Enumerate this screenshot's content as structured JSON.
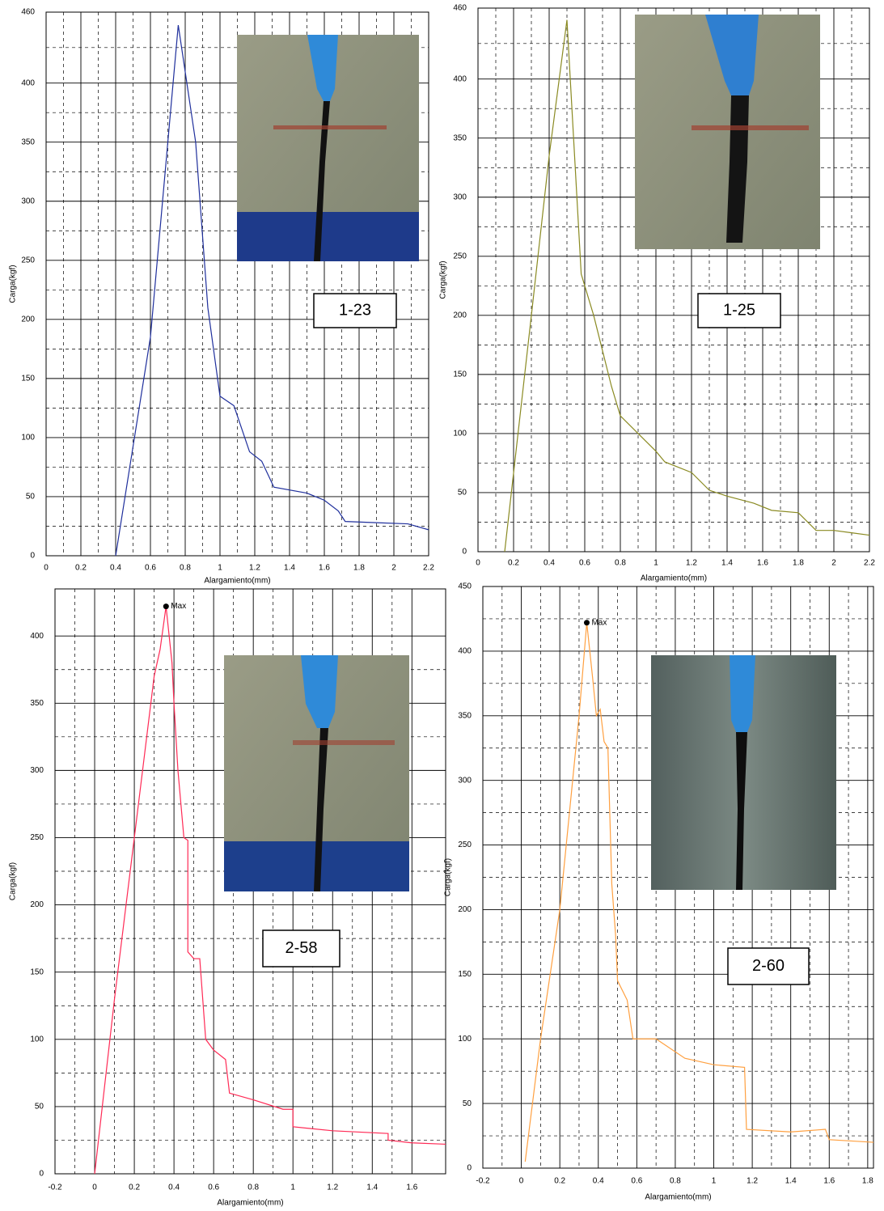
{
  "chart_data": [
    {
      "type": "line",
      "annotation": "1-23",
      "ylabel": "Carga(kgf)",
      "xlabel": "Alargamiento(mm)",
      "color": "#1f2f9c",
      "xlim": [
        0,
        2.2
      ],
      "ylim": [
        0,
        460
      ],
      "xticks": [
        0,
        0.2,
        0.4,
        0.6,
        0.8,
        1,
        1.2,
        1.4,
        1.6,
        1.8,
        2,
        2.2
      ],
      "yticks": [
        0,
        50,
        100,
        150,
        200,
        250,
        300,
        350,
        400,
        460
      ],
      "grid": true,
      "x": [
        0.4,
        0.6,
        0.76,
        0.86,
        0.93,
        1.0,
        1.08,
        1.17,
        1.24,
        1.31,
        1.5,
        1.6,
        1.68,
        1.72,
        1.9,
        2.08,
        2.2
      ],
      "values": [
        0,
        185,
        449,
        350,
        210,
        135,
        127,
        88,
        80,
        58,
        53,
        47,
        38,
        29,
        28,
        27,
        22
      ]
    },
    {
      "type": "line",
      "annotation": "1-25",
      "ylabel": "Carga(kgf)",
      "xlabel": "Alargamiento(mm)",
      "color": "#8a8a22",
      "xlim": [
        0,
        2.2
      ],
      "ylim": [
        0,
        460
      ],
      "xticks": [
        0,
        0.2,
        0.4,
        0.6,
        0.8,
        1,
        1.2,
        1.4,
        1.6,
        1.8,
        2,
        2.2
      ],
      "yticks": [
        0,
        50,
        100,
        150,
        200,
        250,
        300,
        350,
        400,
        460
      ],
      "grid": true,
      "x": [
        0.15,
        0.3,
        0.4,
        0.5,
        0.58,
        0.65,
        0.75,
        0.8,
        0.9,
        1.0,
        1.05,
        1.2,
        1.3,
        1.4,
        1.55,
        1.65,
        1.8,
        1.9,
        2.0,
        2.1,
        2.2
      ],
      "values": [
        0,
        200,
        335,
        450,
        235,
        200,
        140,
        115,
        100,
        85,
        76,
        67,
        52,
        47,
        41,
        35,
        33,
        18,
        18,
        16,
        14
      ]
    },
    {
      "type": "line",
      "annotation": "2-58",
      "ylabel": "Carga(kgf)",
      "xlabel": "Alargamiento(mm)",
      "color": "#ff2a55",
      "xlim": [
        -0.2,
        1.77
      ],
      "ylim": [
        0,
        435
      ],
      "xticks": [
        -0.2,
        0,
        0.2,
        0.4,
        0.6,
        0.8,
        1,
        1.2,
        1.4,
        1.6
      ],
      "yticks": [
        0,
        50,
        100,
        150,
        200,
        250,
        300,
        350,
        400
      ],
      "grid": true,
      "x": [
        0,
        0.1,
        0.2,
        0.3,
        0.33,
        0.36,
        0.39,
        0.4,
        0.42,
        0.45,
        0.47,
        0.47,
        0.5,
        0.53,
        0.56,
        0.6,
        0.66,
        0.68,
        0.8,
        0.95,
        1.0,
        1.0,
        1.2,
        1.48,
        1.48,
        1.6,
        1.77
      ],
      "values": [
        0,
        130,
        250,
        370,
        390,
        422,
        380,
        350,
        300,
        250,
        248,
        165,
        160,
        160,
        100,
        92,
        85,
        60,
        55,
        48,
        48,
        35,
        32,
        30,
        25,
        23,
        22
      ],
      "marker": {
        "x": 0.36,
        "y": 422,
        "label": "Max"
      }
    },
    {
      "type": "line",
      "annotation": "2-60",
      "ylabel": "Carga(kgf)",
      "xlabel": "Alargamiento(mm)",
      "color": "#ffa040",
      "xlim": [
        -0.2,
        1.83
      ],
      "ylim": [
        0,
        450
      ],
      "xticks": [
        -0.2,
        0,
        0.2,
        0.4,
        0.6,
        0.8,
        1,
        1.2,
        1.4,
        1.6,
        1.8
      ],
      "yticks": [
        0,
        50,
        100,
        150,
        200,
        250,
        300,
        350,
        400,
        450
      ],
      "grid": true,
      "x": [
        0.02,
        0.1,
        0.2,
        0.3,
        0.34,
        0.37,
        0.39,
        0.41,
        0.43,
        0.45,
        0.47,
        0.49,
        0.5,
        0.55,
        0.58,
        0.7,
        0.85,
        1.0,
        1.16,
        1.17,
        1.4,
        1.58,
        1.6,
        1.83
      ],
      "values": [
        5,
        100,
        200,
        350,
        422,
        380,
        350,
        355,
        330,
        325,
        220,
        180,
        145,
        130,
        100,
        100,
        85,
        80,
        78,
        30,
        28,
        30,
        22,
        20
      ],
      "marker": {
        "x": 0.34,
        "y": 422,
        "label": "Max"
      }
    }
  ]
}
